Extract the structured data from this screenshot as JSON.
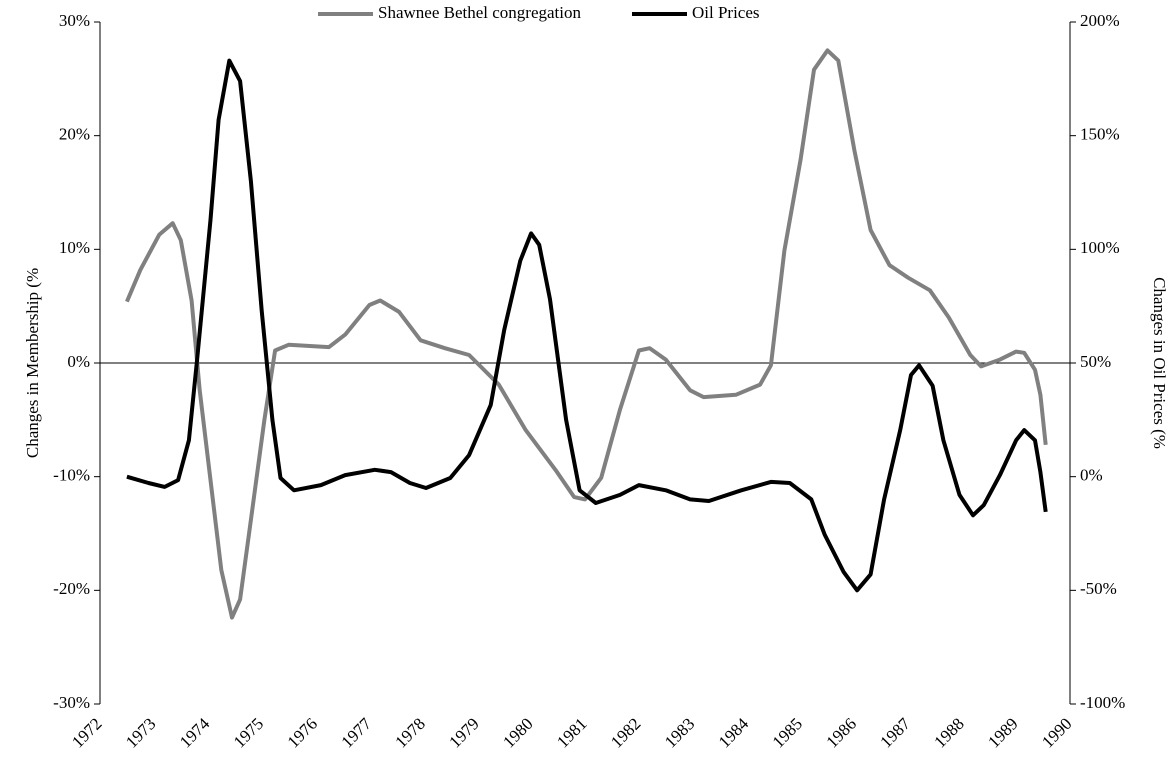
{
  "chart_data": {
    "type": "line",
    "legend": "top",
    "ylabel": "Changes in Membership (%",
    "y2label": "Changes in Oil Prices (%",
    "xlim": [
      1972,
      1990
    ],
    "xticks": [
      1972,
      1973,
      1974,
      1975,
      1976,
      1977,
      1978,
      1979,
      1980,
      1981,
      1982,
      1983,
      1984,
      1985,
      1986,
      1987,
      1988,
      1989,
      1990
    ],
    "ylim": [
      -30,
      30
    ],
    "yticks": [
      {
        "value": -30,
        "label": "-30%"
      },
      {
        "value": -20,
        "label": "-20%"
      },
      {
        "value": -10,
        "label": "-10%"
      },
      {
        "value": 0,
        "label": "0%"
      },
      {
        "value": 10,
        "label": "10%"
      },
      {
        "value": 20,
        "label": "20%"
      },
      {
        "value": 30,
        "label": "30%"
      }
    ],
    "y2lim": [
      -100,
      200
    ],
    "y2ticks": [
      {
        "value": -100,
        "label": "-100%"
      },
      {
        "value": -50,
        "label": "-50%"
      },
      {
        "value": 0,
        "label": "0%"
      },
      {
        "value": 50,
        "label": "50%"
      },
      {
        "value": 100,
        "label": "100%"
      },
      {
        "value": 150,
        "label": "150%"
      },
      {
        "value": 200,
        "label": "200%"
      }
    ],
    "series": [
      {
        "name": "Shawnee Bethel congregation",
        "color": "#808080",
        "axis": "y",
        "x": [
          1972.5,
          1972.75,
          1973.1,
          1973.35,
          1973.5,
          1973.7,
          1973.85,
          1974.05,
          1974.25,
          1974.45,
          1974.6,
          1974.8,
          1975.05,
          1975.25,
          1975.5,
          1976.25,
          1976.55,
          1977.0,
          1977.2,
          1977.55,
          1977.95,
          1978.4,
          1978.85,
          1979.4,
          1979.9,
          1980.45,
          1980.8,
          1981.0,
          1981.3,
          1981.65,
          1982.0,
          1982.2,
          1982.5,
          1982.95,
          1983.2,
          1983.8,
          1984.25,
          1984.45,
          1984.7,
          1985.0,
          1985.25,
          1985.5,
          1985.7,
          1986.0,
          1986.3,
          1986.65,
          1987.0,
          1987.4,
          1987.75,
          1988.15,
          1988.35,
          1988.7,
          1989.0,
          1989.15,
          1989.35,
          1989.45,
          1989.55
        ],
        "values": [
          5.4,
          8.2,
          11.3,
          12.3,
          10.8,
          5.5,
          -2.4,
          -10.3,
          -18.2,
          -22.4,
          -20.8,
          -13.8,
          -5,
          1.1,
          1.6,
          1.4,
          2.5,
          5.1,
          5.5,
          4.5,
          2.0,
          1.3,
          0.7,
          -1.9,
          -5.9,
          -9.4,
          -11.8,
          -12.0,
          -10.1,
          -4.1,
          1.1,
          1.3,
          0.3,
          -2.4,
          -3.0,
          -2.8,
          -1.9,
          -0.2,
          9.9,
          17.9,
          25.8,
          27.5,
          26.6,
          18.7,
          11.7,
          8.6,
          7.5,
          6.4,
          4.0,
          0.7,
          -0.3,
          0.3,
          1.0,
          0.9,
          -0.6,
          -2.8,
          -7.2
        ]
      },
      {
        "name": "Oil Prices",
        "color": "#000000",
        "axis": "y2",
        "x": [
          1972.5,
          1972.9,
          1973.2,
          1973.45,
          1973.65,
          1973.8,
          1974.05,
          1974.2,
          1974.4,
          1974.6,
          1974.8,
          1975.0,
          1975.2,
          1975.35,
          1975.6,
          1976.1,
          1976.55,
          1977.1,
          1977.4,
          1977.75,
          1978.05,
          1978.5,
          1978.85,
          1979.25,
          1979.5,
          1979.8,
          1980.0,
          1980.15,
          1980.35,
          1980.65,
          1980.9,
          1981.2,
          1981.65,
          1982.0,
          1982.5,
          1982.95,
          1983.3,
          1983.9,
          1984.45,
          1984.8,
          1985.2,
          1985.45,
          1985.8,
          1986.05,
          1986.3,
          1986.55,
          1986.85,
          1987.05,
          1987.2,
          1987.45,
          1987.65,
          1987.95,
          1988.2,
          1988.4,
          1988.7,
          1989.0,
          1989.15,
          1989.35,
          1989.45,
          1989.55
        ],
        "values": [
          0,
          -2.8,
          -4.5,
          -1.5,
          16,
          51,
          113,
          157,
          183,
          174,
          130,
          73,
          25,
          -0.6,
          -6,
          -3.7,
          0.7,
          3,
          2,
          -2.8,
          -5,
          -0.6,
          9.5,
          31.5,
          64.5,
          95,
          107,
          102,
          78,
          25,
          -6,
          -11.6,
          -8,
          -3.7,
          -6,
          -10,
          -10.7,
          -6,
          -2.3,
          -2.8,
          -10,
          -25.6,
          -42,
          -50,
          -43,
          -10,
          20.5,
          44.7,
          49,
          40,
          16,
          -8,
          -17,
          -12.5,
          0.7,
          16,
          20.5,
          16,
          2,
          -15.5
        ]
      }
    ]
  }
}
